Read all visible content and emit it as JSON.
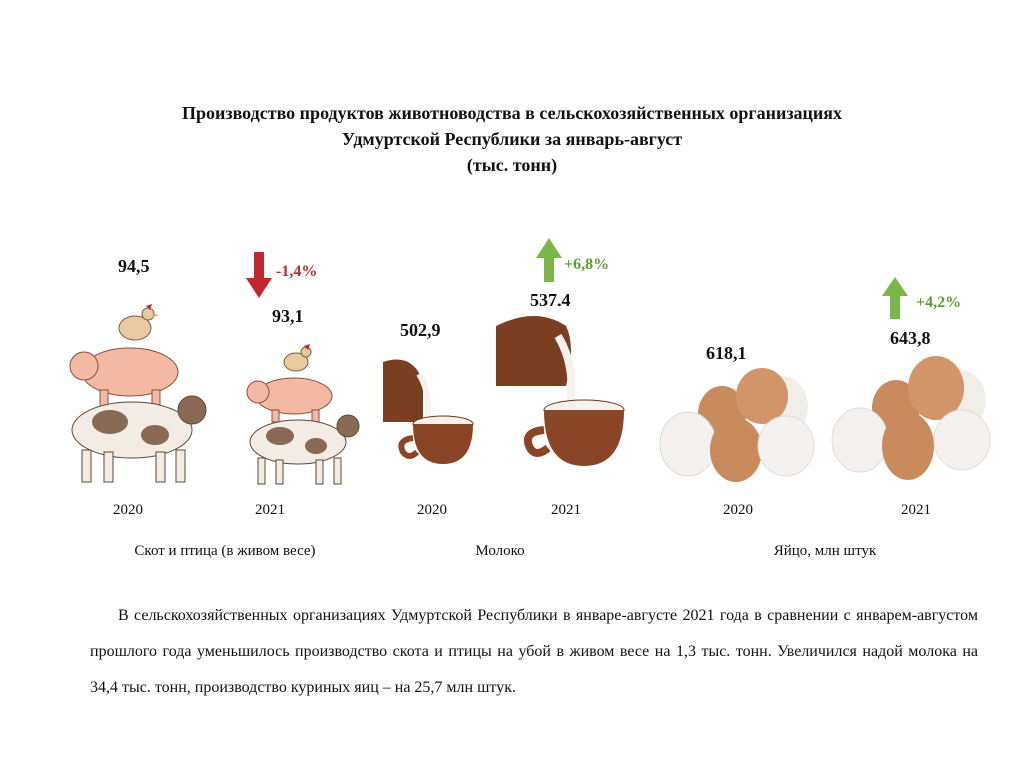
{
  "title": {
    "line1": "Производство продуктов животноводства в сельскохозяйственных организациях",
    "line2": "Удмуртской Республики за январь-август",
    "line3": "(тыс. тонн)"
  },
  "chart_data": {
    "type": "bar",
    "title": "Производство продуктов животноводства в сельскохозяйственных организациях Удмуртской Республики за январь-август",
    "unit": "(тыс. тонн)",
    "groups": [
      {
        "label": "Скот и птица (в живом весе)",
        "years": [
          "2020",
          "2021"
        ],
        "values": [
          "94,5",
          "93,1"
        ],
        "change": "-1,4%",
        "direction": "down"
      },
      {
        "label": "Молоко",
        "years": [
          "2020",
          "2021"
        ],
        "values": [
          "502,9",
          "537,4"
        ],
        "change": "+6,8%",
        "direction": "up"
      },
      {
        "label": "Яйцо, млн штук",
        "years": [
          "2020",
          "2021"
        ],
        "values": [
          "618,1",
          "643,8"
        ],
        "change": "+4,2%",
        "direction": "up"
      }
    ]
  },
  "paragraph": "В сельскохозяйственных организациях Удмуртской Республики в январе-августе 2021 года в сравнении с январем-августом прошлого года уменьшилось производство скота и птицы на убой в живом весе на 1,3 тыс. тонн. Увеличился надой молока на 34,4 тыс. тонн, производство куриных яиц – на 25,7 млн штук.",
  "colors": {
    "down_arrow": "#c0282d",
    "up_arrow": "#7ab648",
    "up_text": "#5e9c2f",
    "down_text": "#c0282d"
  }
}
